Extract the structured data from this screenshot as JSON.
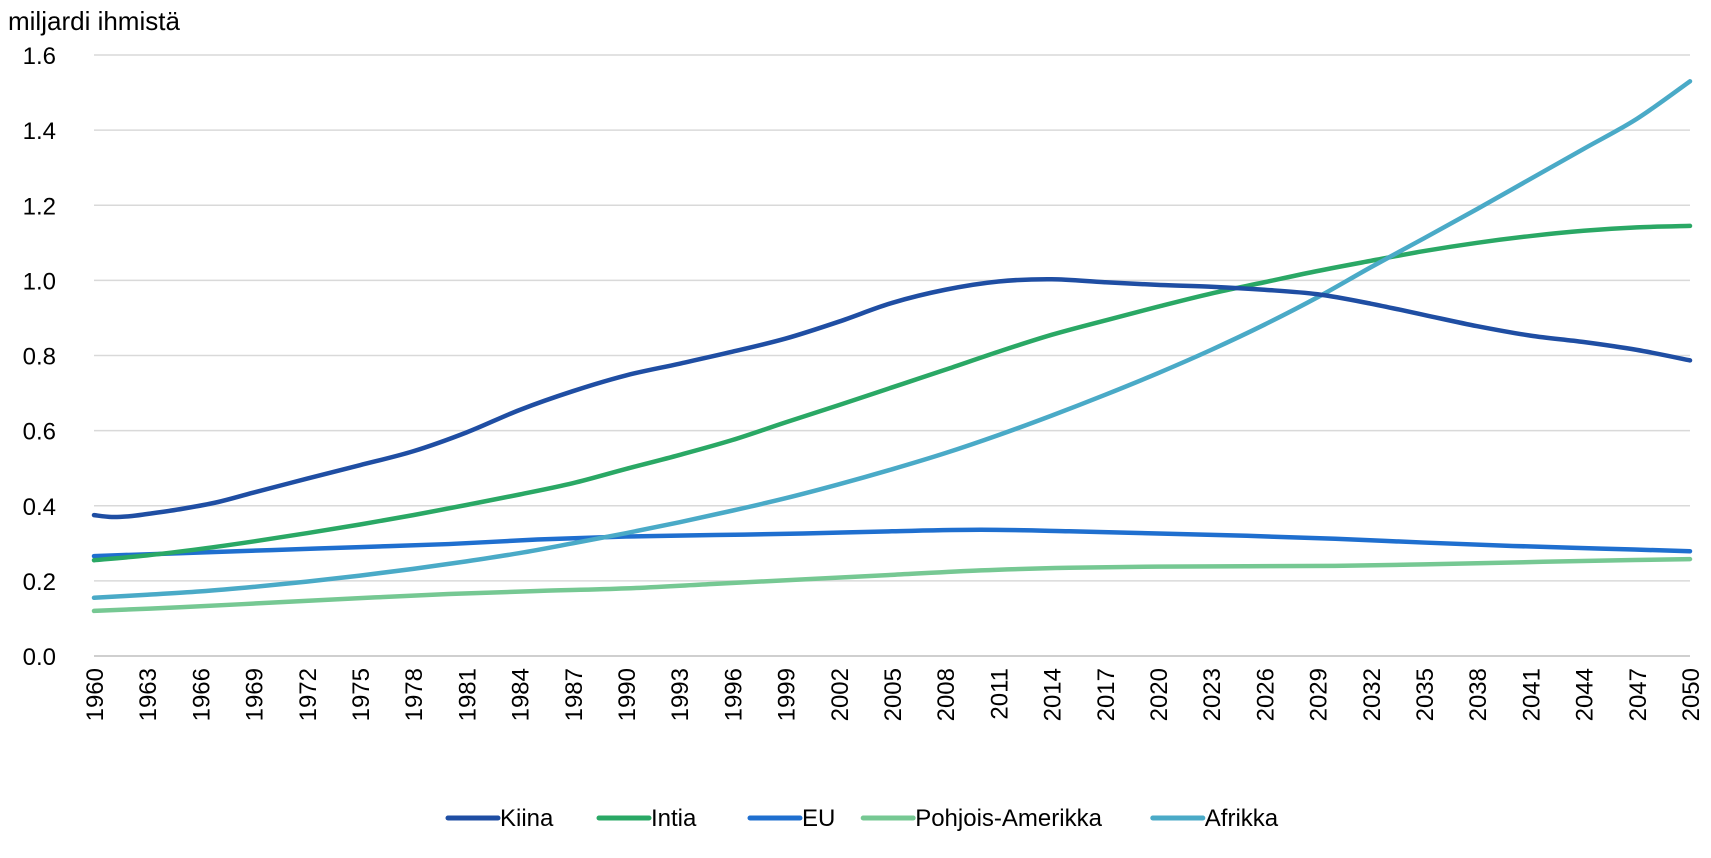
{
  "chart_data": {
    "type": "line",
    "title": "",
    "xlabel": "",
    "ylabel": "miljardi ihmistä",
    "ylim": [
      0,
      1.6
    ],
    "yticks": [
      0.0,
      0.2,
      0.4,
      0.6,
      0.8,
      1.0,
      1.2,
      1.4,
      1.6
    ],
    "ytick_labels": [
      "0.0",
      "0.2",
      "0.4",
      "0.6",
      "0.8",
      "1.0",
      "1.2",
      "1.4",
      "1.6"
    ],
    "x_tick_labels": [
      "1960",
      "1963",
      "1966",
      "1969",
      "1972",
      "1975",
      "1978",
      "1981",
      "1984",
      "1987",
      "1990",
      "1993",
      "1996",
      "1999",
      "2002",
      "2005",
      "2008",
      "2011",
      "2014",
      "2017",
      "2020",
      "2023",
      "2026",
      "2029",
      "2032",
      "2035",
      "2038",
      "2041",
      "2044",
      "2047",
      "2050"
    ],
    "xlim": [
      1960,
      2050
    ],
    "grid": "horizontal",
    "legend_position": "bottom",
    "series": [
      {
        "name": "Kiina",
        "color": "#1f4ea3",
        "points": [
          [
            1960,
            0.375
          ],
          [
            1961,
            0.37
          ],
          [
            1962,
            0.372
          ],
          [
            1963,
            0.378
          ],
          [
            1965,
            0.392
          ],
          [
            1967,
            0.41
          ],
          [
            1969,
            0.435
          ],
          [
            1972,
            0.472
          ],
          [
            1975,
            0.508
          ],
          [
            1978,
            0.545
          ],
          [
            1981,
            0.595
          ],
          [
            1984,
            0.655
          ],
          [
            1987,
            0.705
          ],
          [
            1990,
            0.747
          ],
          [
            1993,
            0.778
          ],
          [
            1996,
            0.81
          ],
          [
            1999,
            0.845
          ],
          [
            2002,
            0.89
          ],
          [
            2005,
            0.94
          ],
          [
            2008,
            0.975
          ],
          [
            2011,
            0.997
          ],
          [
            2014,
            1.003
          ],
          [
            2017,
            0.995
          ],
          [
            2020,
            0.988
          ],
          [
            2023,
            0.983
          ],
          [
            2026,
            0.975
          ],
          [
            2029,
            0.963
          ],
          [
            2032,
            0.938
          ],
          [
            2035,
            0.908
          ],
          [
            2038,
            0.878
          ],
          [
            2041,
            0.853
          ],
          [
            2044,
            0.836
          ],
          [
            2047,
            0.815
          ],
          [
            2050,
            0.787
          ]
        ]
      },
      {
        "name": "Intia",
        "color": "#2aa865",
        "points": [
          [
            1960,
            0.255
          ],
          [
            1963,
            0.268
          ],
          [
            1966,
            0.285
          ],
          [
            1969,
            0.305
          ],
          [
            1972,
            0.327
          ],
          [
            1975,
            0.35
          ],
          [
            1978,
            0.375
          ],
          [
            1981,
            0.402
          ],
          [
            1984,
            0.43
          ],
          [
            1987,
            0.46
          ],
          [
            1990,
            0.498
          ],
          [
            1993,
            0.535
          ],
          [
            1996,
            0.575
          ],
          [
            1999,
            0.622
          ],
          [
            2002,
            0.668
          ],
          [
            2005,
            0.715
          ],
          [
            2008,
            0.762
          ],
          [
            2011,
            0.81
          ],
          [
            2014,
            0.855
          ],
          [
            2017,
            0.893
          ],
          [
            2020,
            0.93
          ],
          [
            2023,
            0.965
          ],
          [
            2026,
            0.995
          ],
          [
            2029,
            1.025
          ],
          [
            2032,
            1.052
          ],
          [
            2035,
            1.078
          ],
          [
            2038,
            1.1
          ],
          [
            2041,
            1.118
          ],
          [
            2044,
            1.132
          ],
          [
            2047,
            1.141
          ],
          [
            2050,
            1.145
          ]
        ]
      },
      {
        "name": "EU",
        "color": "#1f6fcf",
        "points": [
          [
            1960,
            0.266
          ],
          [
            1965,
            0.274
          ],
          [
            1970,
            0.282
          ],
          [
            1975,
            0.29
          ],
          [
            1980,
            0.298
          ],
          [
            1985,
            0.31
          ],
          [
            1990,
            0.318
          ],
          [
            1995,
            0.322
          ],
          [
            2000,
            0.326
          ],
          [
            2005,
            0.332
          ],
          [
            2010,
            0.336
          ],
          [
            2015,
            0.332
          ],
          [
            2020,
            0.326
          ],
          [
            2025,
            0.32
          ],
          [
            2030,
            0.312
          ],
          [
            2035,
            0.302
          ],
          [
            2040,
            0.293
          ],
          [
            2045,
            0.286
          ],
          [
            2050,
            0.279
          ]
        ]
      },
      {
        "name": "Pohjois-Amerikka",
        "color": "#76c893",
        "points": [
          [
            1960,
            0.12
          ],
          [
            1965,
            0.13
          ],
          [
            1970,
            0.142
          ],
          [
            1975,
            0.154
          ],
          [
            1980,
            0.165
          ],
          [
            1985,
            0.173
          ],
          [
            1990,
            0.18
          ],
          [
            1995,
            0.192
          ],
          [
            2000,
            0.204
          ],
          [
            2005,
            0.216
          ],
          [
            2010,
            0.228
          ],
          [
            2015,
            0.235
          ],
          [
            2020,
            0.238
          ],
          [
            2025,
            0.239
          ],
          [
            2030,
            0.24
          ],
          [
            2035,
            0.244
          ],
          [
            2040,
            0.249
          ],
          [
            2045,
            0.254
          ],
          [
            2050,
            0.258
          ]
        ]
      },
      {
        "name": "Afrikka",
        "color": "#4aaac7",
        "points": [
          [
            1960,
            0.155
          ],
          [
            1963,
            0.163
          ],
          [
            1966,
            0.172
          ],
          [
            1969,
            0.184
          ],
          [
            1972,
            0.198
          ],
          [
            1975,
            0.214
          ],
          [
            1978,
            0.232
          ],
          [
            1981,
            0.252
          ],
          [
            1984,
            0.274
          ],
          [
            1987,
            0.3
          ],
          [
            1990,
            0.327
          ],
          [
            1993,
            0.356
          ],
          [
            1996,
            0.387
          ],
          [
            1999,
            0.42
          ],
          [
            2002,
            0.457
          ],
          [
            2005,
            0.497
          ],
          [
            2008,
            0.54
          ],
          [
            2011,
            0.588
          ],
          [
            2014,
            0.64
          ],
          [
            2017,
            0.695
          ],
          [
            2020,
            0.753
          ],
          [
            2023,
            0.815
          ],
          [
            2026,
            0.882
          ],
          [
            2029,
            0.955
          ],
          [
            2032,
            1.035
          ],
          [
            2035,
            1.112
          ],
          [
            2038,
            1.19
          ],
          [
            2041,
            1.27
          ],
          [
            2044,
            1.35
          ],
          [
            2047,
            1.43
          ],
          [
            2050,
            1.53
          ]
        ]
      }
    ]
  }
}
